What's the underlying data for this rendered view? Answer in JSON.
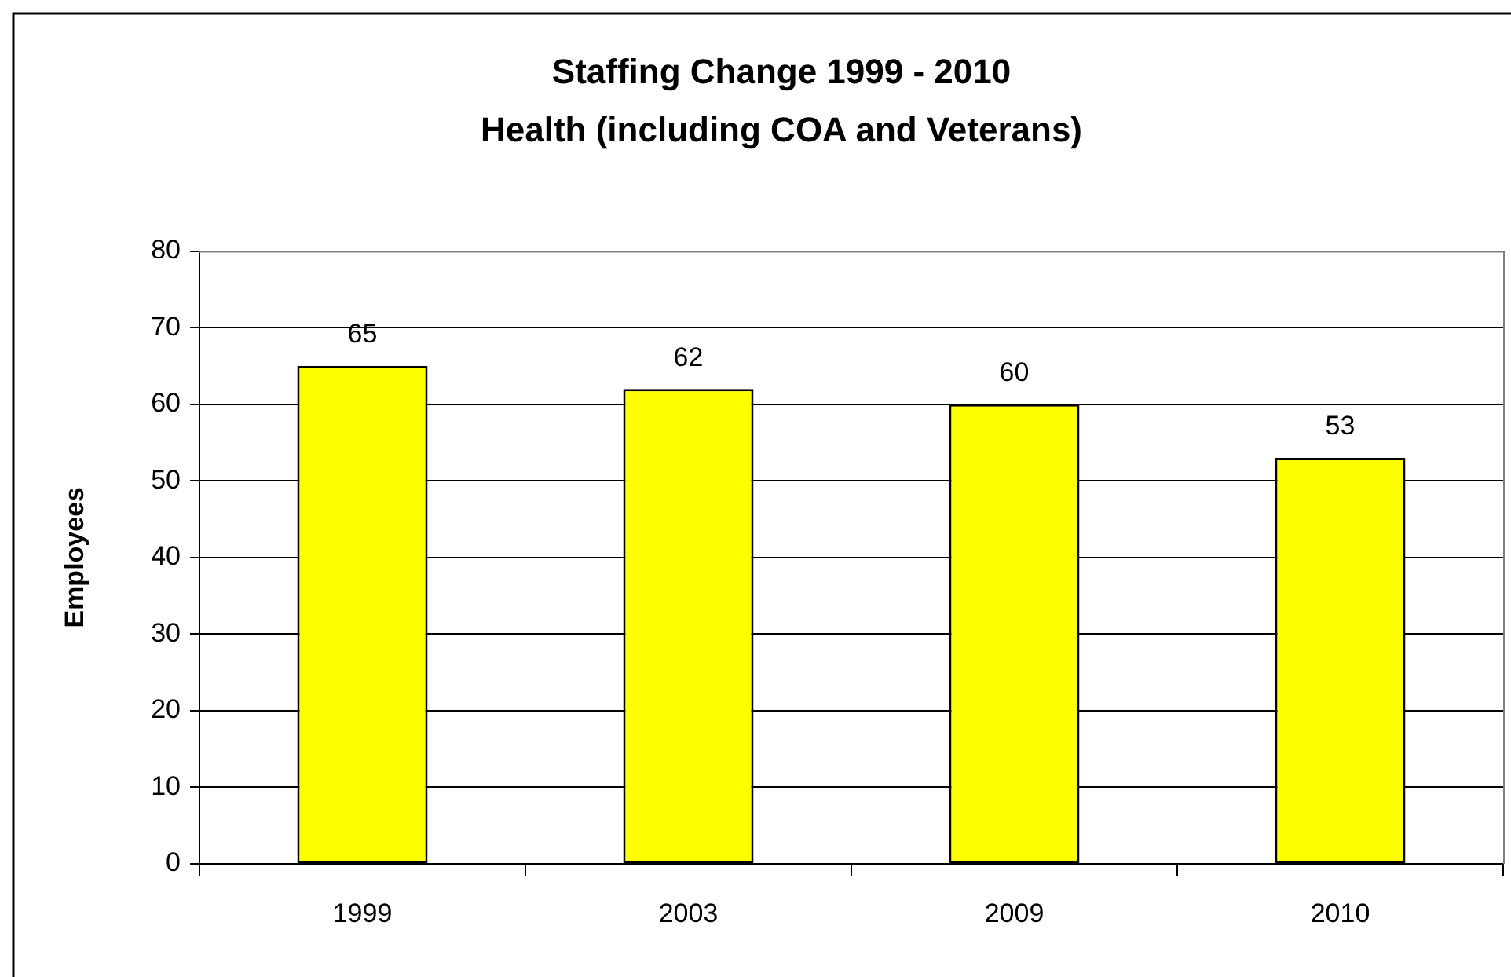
{
  "chart_data": {
    "type": "bar",
    "title": "Staffing Change 1999 - 2010\nHealth (including COA and Veterans)",
    "ylabel": "Employees",
    "categories": [
      "1999",
      "2003",
      "2009",
      "2010"
    ],
    "values": [
      65,
      62,
      60,
      53
    ],
    "color": "#ffff00",
    "ylim": [
      0,
      80
    ],
    "yticks": [
      0,
      10,
      20,
      30,
      40,
      50,
      60,
      70,
      80
    ],
    "grid": "y",
    "data_labels": true
  }
}
